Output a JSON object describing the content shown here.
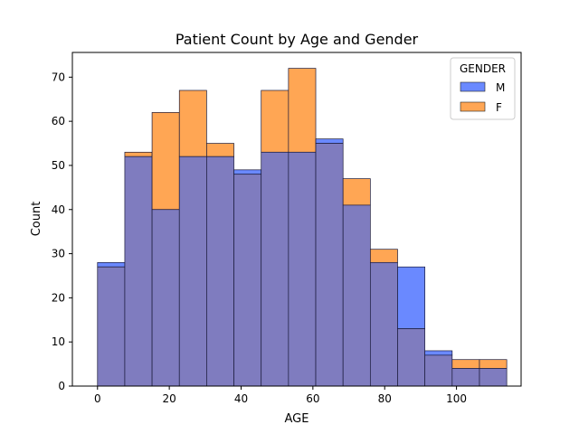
{
  "chart_data": {
    "type": "histogram",
    "title": "Patient Count by Age and Gender",
    "xlabel": "AGE",
    "ylabel": "Count",
    "xlim": [
      -7,
      118
    ],
    "ylim": [
      0,
      75.6
    ],
    "x_ticks": [
      0,
      20,
      40,
      60,
      80,
      100
    ],
    "y_ticks": [
      0,
      10,
      20,
      30,
      40,
      50,
      60,
      70
    ],
    "bin_edges": [
      0,
      7.6,
      15.2,
      22.8,
      30.4,
      38.0,
      45.6,
      53.2,
      60.8,
      68.4,
      76.0,
      83.6,
      91.2,
      98.8,
      106.4,
      114.0
    ],
    "legend": {
      "title": "GENDER",
      "position": "top-right"
    },
    "series": [
      {
        "name": "M",
        "color": "#6a89ff",
        "values": [
          28,
          52,
          40,
          52,
          52,
          49,
          53,
          53,
          56,
          41,
          28,
          27,
          8,
          4,
          4
        ]
      },
      {
        "name": "F",
        "color": "#ffa654",
        "values": [
          27,
          53,
          62,
          67,
          55,
          48,
          67,
          72,
          55,
          47,
          31,
          13,
          7,
          6,
          6
        ]
      }
    ],
    "overlap_color": "#7f7cbf"
  }
}
